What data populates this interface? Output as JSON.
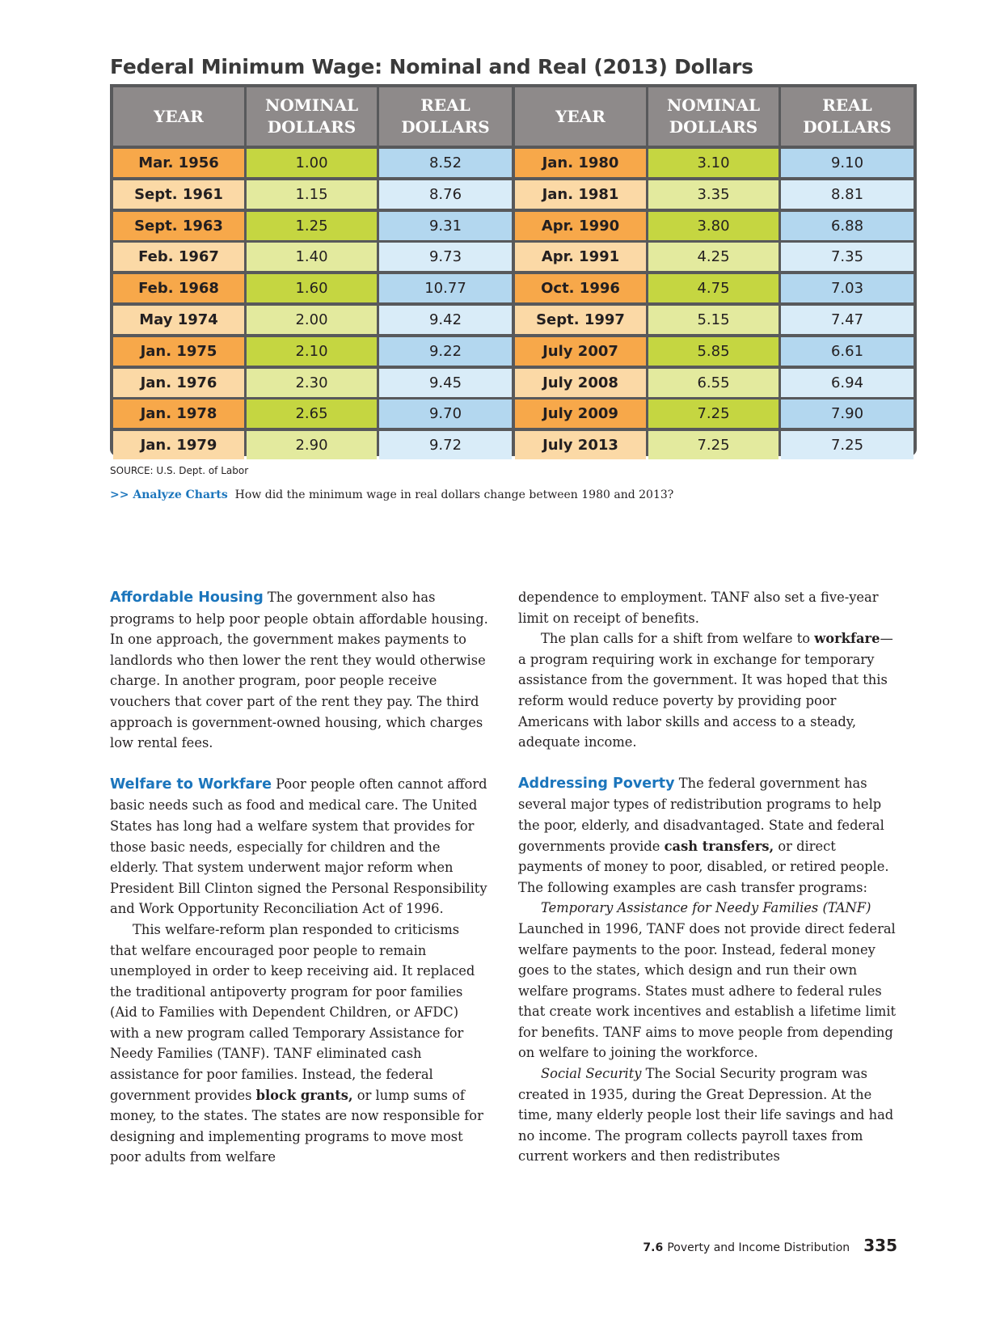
{
  "title": "Federal Minimum Wage: Nominal and Real (2013) Dollars",
  "table": {
    "headers": {
      "year": "YEAR",
      "nominal_1": "NOMINAL",
      "nominal_2": "DOLLARS",
      "real_1": "REAL",
      "real_2": "DOLLARS"
    },
    "left": [
      {
        "year": "Mar. 1956",
        "nominal": "1.00",
        "real": "8.52"
      },
      {
        "year": "Sept. 1961",
        "nominal": "1.15",
        "real": "8.76"
      },
      {
        "year": "Sept. 1963",
        "nominal": "1.25",
        "real": "9.31"
      },
      {
        "year": "Feb. 1967",
        "nominal": "1.40",
        "real": "9.73"
      },
      {
        "year": "Feb. 1968",
        "nominal": "1.60",
        "real": "10.77"
      },
      {
        "year": "May 1974",
        "nominal": "2.00",
        "real": "9.42"
      },
      {
        "year": "Jan. 1975",
        "nominal": "2.10",
        "real": "9.22"
      },
      {
        "year": "Jan. 1976",
        "nominal": "2.30",
        "real": "9.45"
      },
      {
        "year": "Jan. 1978",
        "nominal": "2.65",
        "real": "9.70"
      },
      {
        "year": "Jan. 1979",
        "nominal": "2.90",
        "real": "9.72"
      }
    ],
    "right": [
      {
        "year": "Jan. 1980",
        "nominal": "3.10",
        "real": "9.10"
      },
      {
        "year": "Jan. 1981",
        "nominal": "3.35",
        "real": "8.81"
      },
      {
        "year": "Apr. 1990",
        "nominal": "3.80",
        "real": "6.88"
      },
      {
        "year": "Apr. 1991",
        "nominal": "4.25",
        "real": "7.35"
      },
      {
        "year": "Oct. 1996",
        "nominal": "4.75",
        "real": "7.03"
      },
      {
        "year": "Sept. 1997",
        "nominal": "5.15",
        "real": "7.47"
      },
      {
        "year": "July 2007",
        "nominal": "5.85",
        "real": "6.61"
      },
      {
        "year": "July 2008",
        "nominal": "6.55",
        "real": "6.94"
      },
      {
        "year": "July 2009",
        "nominal": "7.25",
        "real": "7.90"
      },
      {
        "year": "July 2013",
        "nominal": "7.25",
        "real": "7.25"
      }
    ]
  },
  "colors": {
    "year_dark": "#f7a84a",
    "year_light": "#fbd9a6",
    "nominal_dark": "#c5d641",
    "nominal_light": "#e3ea9e",
    "real_dark": "#b3d7ef",
    "real_light": "#d9ecf8",
    "header_bg": "#8e8a8a",
    "heading_blue": "#1b75bc"
  },
  "source": "SOURCE: U.S. Dept. of Labor",
  "analyze": {
    "label": ">> Analyze Charts",
    "question": "How did the minimum wage in real dollars change between 1980 and 2013?"
  },
  "left_column": {
    "housing_head": "Affordable Housing",
    "housing_text": " The government also has programs to help poor people obtain affordable housing. In one approach, the government makes payments to landlords who then lower the rent they would otherwise charge. In another program, poor people receive vouchers that cover part of the rent they pay. The third approach is government-owned housing, which charges low rental fees.",
    "welfare_head": "Welfare to Workfare",
    "welfare_text": " Poor people often cannot afford basic needs such as food and medical care. The United States has long had a welfare system that provides for those basic needs, especially for children and the elderly. That system underwent major reform when President Bill Clinton signed the Personal Responsibility and Work Opportunity Reconciliation Act of 1996.",
    "reform_text_1": "This welfare-reform plan responded to criticisms that welfare encouraged poor people to remain unemployed in order to keep receiving aid. It replaced the traditional antipoverty program for poor families (Aid to Families with Dependent Children, or AFDC) with a new program called Temporary Assistance for Needy Families (TANF). TANF eliminated cash assistance for poor families. Instead, the federal government provides ",
    "reform_bold": "block grants,",
    "reform_text_2": " or lump sums of money, to the states. The states are now responsible for designing and implementing programs to move most poor adults from welfare"
  },
  "right_column": {
    "cont_text": "dependence to employment. TANF also set a five-year limit on receipt of benefits.",
    "plan_text_1": "The plan calls for a shift from welfare to ",
    "plan_bold": "workfare",
    "plan_text_2": "—a program requiring work in exchange for temporary assistance from the government. It was hoped that this reform would reduce poverty by providing poor Americans with labor skills and access to a steady, adequate income.",
    "poverty_head": "Addressing Poverty",
    "poverty_text_1": " The federal government has several major types of redistribution programs to help the poor, elderly, and disadvantaged. State and federal governments provide ",
    "poverty_bold": "cash transfers,",
    "poverty_text_2": " or direct payments of money to poor, disabled, or retired people. The following examples are cash transfer programs:",
    "tanf_italic": "Temporary Assistance for Needy Families (TANF)",
    "tanf_text": " Launched in 1996, TANF does not provide direct federal welfare payments to the poor. Instead, federal money goes to the states, which design and run their own welfare programs. States must adhere to federal rules that create work incentives and establish a lifetime limit for benefits. TANF aims to move people from depending on welfare to joining the workforce.",
    "ss_italic": "Social Security",
    "ss_text": " The Social Security program was created in 1935, during the Great Depression. At the time, many elderly people lost their life savings and had no income. The program collects payroll taxes from current workers and then redistributes"
  },
  "footer": {
    "section": "7.6",
    "section_title": "Poverty and Income Distribution",
    "page": "335"
  }
}
